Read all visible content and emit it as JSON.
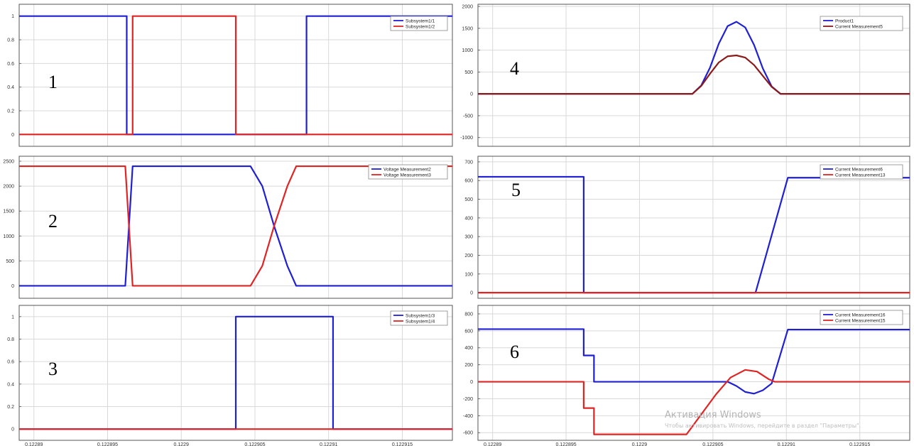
{
  "figure": {
    "watermark": {
      "line1": "Активация Windows",
      "line2": "Чтобы активировать Windows, перейдите в раздел \"Параметры\"."
    }
  },
  "colors": {
    "blue": "#1f1fd6",
    "red": "#e02424",
    "dark_red": "#8b1a1a",
    "grid": "#d9d9d9",
    "axes": "#000000",
    "background": "#ffffff"
  },
  "chart_data": [
    {
      "id": "panel-1",
      "type": "line",
      "panel_number": "1",
      "x_tick_labels": [
        "0.12289",
        "0.122895",
        "0.1229",
        "0.122905",
        "0.12291",
        "0.122915"
      ],
      "xlim": [
        0.122889,
        0.1229184
      ],
      "ylim": [
        -0.1,
        1.1
      ],
      "y_ticks": [
        0,
        0.2,
        0.4,
        0.6,
        0.8,
        1
      ],
      "y_tick_labels": [
        "0",
        "0.2",
        "0.4",
        "0.6",
        "0.8",
        "1"
      ],
      "grid": true,
      "legend_position": "top-right",
      "series": [
        {
          "name": "Subsystem1/1",
          "color": "#1f1fd6",
          "points": [
            [
              0.122889,
              1
            ],
            [
              0.1228963,
              1
            ],
            [
              0.1228963,
              0
            ],
            [
              0.1229085,
              0
            ],
            [
              0.1229085,
              1
            ],
            [
              0.1229184,
              1
            ]
          ]
        },
        {
          "name": "Subsystem1/2",
          "color": "#e02424",
          "points": [
            [
              0.122889,
              0
            ],
            [
              0.1228967,
              0
            ],
            [
              0.1228967,
              1
            ],
            [
              0.1229037,
              1
            ],
            [
              0.1229037,
              0
            ],
            [
              0.1229184,
              0
            ]
          ]
        }
      ]
    },
    {
      "id": "panel-2",
      "type": "line",
      "panel_number": "2",
      "x_tick_labels": [
        "0.12289",
        "0.122895",
        "0.1229",
        "0.122905",
        "0.12291",
        "0.122915"
      ],
      "xlim": [
        0.122889,
        0.1229184
      ],
      "ylim": [
        -250,
        2600
      ],
      "y_ticks": [
        0,
        500,
        1000,
        1500,
        2000,
        2500
      ],
      "y_tick_labels": [
        "0",
        "500",
        "1000",
        "1500",
        "2000",
        "2500"
      ],
      "grid": true,
      "legend_position": "top-right",
      "series": [
        {
          "name": "Voltage Measurement2",
          "color": "#1f1fd6",
          "points": [
            [
              0.122889,
              0
            ],
            [
              0.1228962,
              0
            ],
            [
              0.1228967,
              2400
            ],
            [
              0.1229047,
              2400
            ],
            [
              0.1229055,
              2000
            ],
            [
              0.1229063,
              1200
            ],
            [
              0.1229072,
              400
            ],
            [
              0.1229078,
              0
            ],
            [
              0.1229184,
              0
            ]
          ]
        },
        {
          "name": "Voltage Measurement3",
          "color": "#e02424",
          "points": [
            [
              0.122889,
              2400
            ],
            [
              0.1228962,
              2400
            ],
            [
              0.1228967,
              0
            ],
            [
              0.1229047,
              0
            ],
            [
              0.1229055,
              400
            ],
            [
              0.1229063,
              1200
            ],
            [
              0.1229072,
              2000
            ],
            [
              0.1229078,
              2400
            ],
            [
              0.1229184,
              2400
            ]
          ]
        }
      ]
    },
    {
      "id": "panel-3",
      "type": "line",
      "panel_number": "3",
      "x_tick_labels": [
        "0.12289",
        "0.122895",
        "0.1229",
        "0.122905",
        "0.12291",
        "0.122915"
      ],
      "xlim": [
        0.122889,
        0.1229184
      ],
      "ylim": [
        -0.1,
        1.1
      ],
      "y_ticks": [
        0,
        0.2,
        0.4,
        0.6,
        0.8,
        1
      ],
      "y_tick_labels": [
        "0",
        "0.2",
        "0.4",
        "0.6",
        "0.8",
        "1"
      ],
      "grid": true,
      "legend_position": "top-right",
      "series": [
        {
          "name": "Subsystem1/3",
          "color": "#1f1fd6",
          "points": [
            [
              0.122889,
              0
            ],
            [
              0.1229037,
              0
            ],
            [
              0.1229037,
              1
            ],
            [
              0.1229103,
              1
            ],
            [
              0.1229103,
              0
            ],
            [
              0.1229184,
              0
            ]
          ]
        },
        {
          "name": "Subsystem1/4",
          "color": "#e02424",
          "points": [
            [
              0.122889,
              0
            ],
            [
              0.1229184,
              0
            ]
          ]
        }
      ]
    },
    {
      "id": "panel-4",
      "type": "line",
      "panel_number": "4",
      "x_tick_labels": [
        "0.12289",
        "0.122895",
        "0.1229",
        "0.122905",
        "0.12291",
        "0.122915"
      ],
      "xlim": [
        0.122889,
        0.1229184
      ],
      "ylim": [
        -1200,
        2050
      ],
      "y_ticks": [
        -1000,
        -500,
        0,
        500,
        1000,
        1500,
        2000
      ],
      "y_tick_labels": [
        "-1000",
        "-500",
        "0",
        "500",
        "1000",
        "1500",
        "2000"
      ],
      "grid": true,
      "legend_position": "top-right",
      "series": [
        {
          "name": "Product1",
          "color": "#1f1fd6",
          "points": [
            [
              0.122889,
              0
            ],
            [
              0.1229036,
              0
            ],
            [
              0.1229042,
              190
            ],
            [
              0.1229048,
              600
            ],
            [
              0.1229054,
              1150
            ],
            [
              0.122906,
              1550
            ],
            [
              0.1229066,
              1650
            ],
            [
              0.1229072,
              1520
            ],
            [
              0.1229078,
              1120
            ],
            [
              0.1229084,
              580
            ],
            [
              0.122909,
              170
            ],
            [
              0.1229096,
              0
            ],
            [
              0.1229184,
              0
            ]
          ]
        },
        {
          "name": "Current Measurement5",
          "color": "#8b1a1a",
          "points": [
            [
              0.122889,
              0
            ],
            [
              0.1229036,
              0
            ],
            [
              0.1229042,
              180
            ],
            [
              0.1229048,
              460
            ],
            [
              0.1229054,
              720
            ],
            [
              0.122906,
              860
            ],
            [
              0.1229066,
              880
            ],
            [
              0.1229072,
              830
            ],
            [
              0.1229078,
              660
            ],
            [
              0.1229084,
              410
            ],
            [
              0.122909,
              160
            ],
            [
              0.1229096,
              0
            ],
            [
              0.1229184,
              0
            ]
          ]
        }
      ]
    },
    {
      "id": "panel-5",
      "type": "line",
      "panel_number": "5",
      "x_tick_labels": [
        "0.12289",
        "0.122895",
        "0.1229",
        "0.122905",
        "0.12291",
        "0.122915"
      ],
      "xlim": [
        0.122889,
        0.1229184
      ],
      "ylim": [
        -30,
        730
      ],
      "y_ticks": [
        0,
        100,
        200,
        300,
        400,
        500,
        600,
        700
      ],
      "y_tick_labels": [
        "0",
        "100",
        "200",
        "300",
        "400",
        "500",
        "600",
        "700"
      ],
      "grid": true,
      "legend_position": "top-right",
      "series": [
        {
          "name": "Current Measurement6",
          "color": "#1f1fd6",
          "points": [
            [
              0.122889,
              620
            ],
            [
              0.1228962,
              620
            ],
            [
              0.1228962,
              0
            ],
            [
              0.1229079,
              0
            ],
            [
              0.1229101,
              615
            ],
            [
              0.1229184,
              615
            ]
          ]
        },
        {
          "name": "Current Measurement13",
          "color": "#e02424",
          "points": [
            [
              0.122889,
              0
            ],
            [
              0.1229184,
              0
            ]
          ]
        }
      ]
    },
    {
      "id": "panel-6",
      "type": "line",
      "panel_number": "6",
      "x_tick_labels": [
        "0.12289",
        "0.122895",
        "0.1229",
        "0.122905",
        "0.12291",
        "0.122915"
      ],
      "xlim": [
        0.122889,
        0.1229184
      ],
      "ylim": [
        -690,
        900
      ],
      "y_ticks": [
        -600,
        -400,
        -200,
        0,
        200,
        400,
        600,
        800
      ],
      "y_tick_labels": [
        "-600",
        "-400",
        "-200",
        "0",
        "200",
        "400",
        "600",
        "800"
      ],
      "grid": true,
      "legend_position": "top-right",
      "series": [
        {
          "name": "Current Measurement16",
          "color": "#1f1fd6",
          "points": [
            [
              0.122889,
              620
            ],
            [
              0.1228962,
              620
            ],
            [
              0.1228962,
              310
            ],
            [
              0.1228969,
              310
            ],
            [
              0.1228969,
              0
            ],
            [
              0.122906,
              0
            ],
            [
              0.1229066,
              -50
            ],
            [
              0.1229072,
              -120
            ],
            [
              0.1229078,
              -140
            ],
            [
              0.1229084,
              -100
            ],
            [
              0.122909,
              -20
            ],
            [
              0.1229101,
              615
            ],
            [
              0.1229184,
              615
            ]
          ]
        },
        {
          "name": "Current Measurement15",
          "color": "#e02424",
          "points": [
            [
              0.122889,
              0
            ],
            [
              0.1228962,
              0
            ],
            [
              0.1228962,
              -310
            ],
            [
              0.1228969,
              -310
            ],
            [
              0.1228969,
              -620
            ],
            [
              0.1229032,
              -620
            ],
            [
              0.1229052,
              -150
            ],
            [
              0.1229062,
              50
            ],
            [
              0.1229072,
              140
            ],
            [
              0.122908,
              120
            ],
            [
              0.1229088,
              30
            ],
            [
              0.1229092,
              0
            ],
            [
              0.1229184,
              0
            ]
          ]
        }
      ]
    }
  ]
}
